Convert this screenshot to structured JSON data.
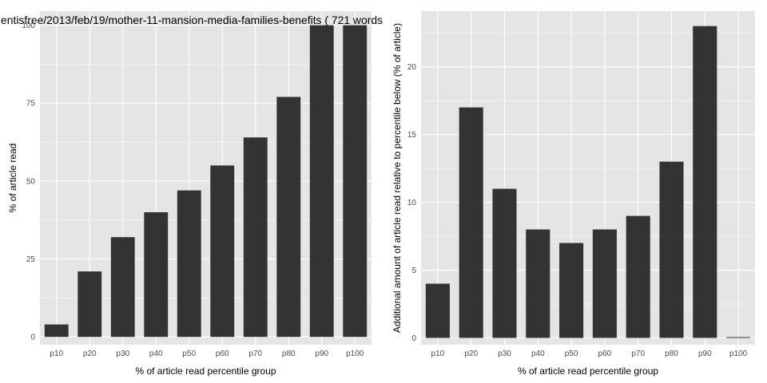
{
  "panels": [
    {
      "title": "entisfree/2013/feb/19/mother-11-mansion-media-families-benefits ( 721 words",
      "xlabel": "% of article read percentile group",
      "ylabel": "% of article read"
    },
    {
      "title": "",
      "xlabel": "% of article read percentile group",
      "ylabel": "Additional amount of article read relative to percentile below (% of article)"
    }
  ],
  "colors": {
    "panel_background": "#e5e5e5",
    "grid": "#ffffff",
    "bar": "#333333",
    "tick_text": "#4d4d4d"
  },
  "chart_data": [
    {
      "type": "bar",
      "title": "entisfree/2013/feb/19/mother-11-mansion-media-families-benefits ( 721 words",
      "xlabel": "% of article read percentile group",
      "ylabel": "% of article read",
      "categories": [
        "p10",
        "p20",
        "p30",
        "p40",
        "p50",
        "p60",
        "p70",
        "p80",
        "p90",
        "p100"
      ],
      "values": [
        4,
        21,
        32,
        40,
        47,
        55,
        64,
        77,
        100,
        100
      ],
      "yticks": [
        0,
        25,
        50,
        75,
        100
      ],
      "ylim": [
        -2.5,
        104.5
      ],
      "grid": true,
      "legend": "none"
    },
    {
      "type": "bar",
      "title": "",
      "xlabel": "% of article read percentile group",
      "ylabel": "Additional amount of article read relative to percentile below (% of article)",
      "categories": [
        "p10",
        "p20",
        "p30",
        "p40",
        "p50",
        "p60",
        "p70",
        "p80",
        "p90",
        "p100"
      ],
      "values": [
        4,
        17,
        11,
        8,
        7,
        8,
        9,
        13,
        23,
        0
      ],
      "yticks": [
        0,
        5,
        10,
        15,
        20
      ],
      "ylim": [
        -0.5,
        24.1
      ],
      "grid": true,
      "legend": "none"
    }
  ]
}
